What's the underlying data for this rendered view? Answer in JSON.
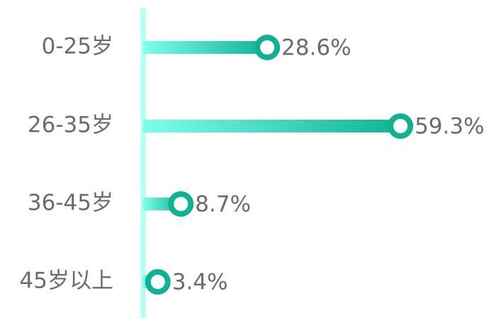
{
  "chart_data": {
    "type": "lollipop",
    "categories": [
      "0-25岁",
      "26-35岁",
      "36-45岁",
      "45岁以上"
    ],
    "values": [
      28.6,
      59.3,
      8.7,
      3.4
    ],
    "value_labels": [
      "28.6%",
      "59.3%",
      "8.7%",
      "3.4%"
    ],
    "color": "#0fb293",
    "xlim": [
      0,
      80
    ]
  }
}
